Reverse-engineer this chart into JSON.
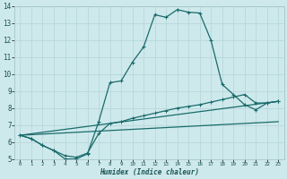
{
  "xlabel": "Humidex (Indice chaleur)",
  "bg_color": "#cee9ec",
  "grid_color": "#b8d8dc",
  "line_color": "#1a6b6b",
  "xlim": [
    -0.5,
    23.5
  ],
  "ylim": [
    5,
    14
  ],
  "xticks": [
    0,
    1,
    2,
    3,
    4,
    5,
    6,
    7,
    8,
    9,
    10,
    11,
    12,
    13,
    14,
    15,
    16,
    17,
    18,
    19,
    20,
    21,
    22,
    23
  ],
  "yticks": [
    5,
    6,
    7,
    8,
    9,
    10,
    11,
    12,
    13,
    14
  ],
  "line1_x": [
    0,
    1,
    2,
    3,
    4,
    5,
    6,
    7,
    8,
    9,
    10,
    11,
    12,
    13,
    14,
    15,
    16,
    17,
    18,
    19,
    20,
    21,
    22,
    23
  ],
  "line1_y": [
    6.4,
    6.2,
    5.8,
    5.5,
    5.0,
    5.0,
    5.3,
    7.2,
    9.5,
    9.6,
    10.7,
    11.6,
    13.5,
    13.35,
    13.8,
    13.65,
    13.6,
    12.0,
    9.4,
    8.8,
    8.2,
    7.9,
    8.3,
    8.4
  ],
  "line2_x": [
    0,
    1,
    2,
    3,
    4,
    5,
    6,
    7,
    8,
    9,
    10,
    11,
    12,
    13,
    14,
    15,
    16,
    17,
    18,
    19,
    20,
    21,
    22,
    23
  ],
  "line2_y": [
    6.4,
    6.2,
    5.8,
    5.5,
    5.2,
    5.1,
    5.35,
    6.5,
    7.1,
    7.2,
    7.4,
    7.55,
    7.7,
    7.85,
    8.0,
    8.1,
    8.2,
    8.35,
    8.5,
    8.65,
    8.8,
    8.3,
    8.3,
    8.4
  ],
  "line3_x": [
    0,
    23
  ],
  "line3_y": [
    6.4,
    8.4
  ],
  "line4_x": [
    0,
    23
  ],
  "line4_y": [
    6.4,
    7.2
  ]
}
